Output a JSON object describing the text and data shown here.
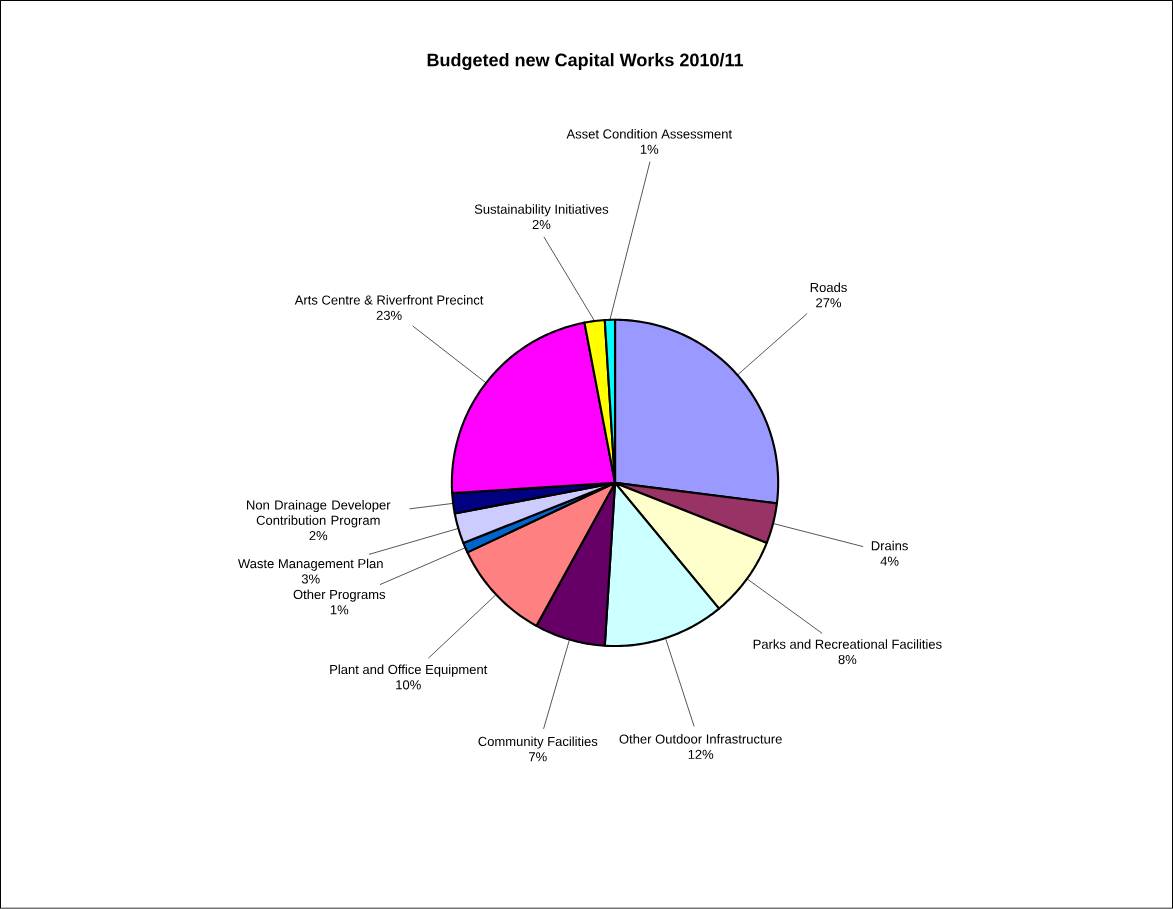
{
  "chart_data": {
    "type": "pie",
    "title": "Budgeted new Capital Works 2010/11",
    "categories": [
      "Roads",
      "Drains",
      "Parks and Recreational Facilities",
      "Other Outdoor Infrastructure",
      "Community Facilities",
      "Plant and Office Equipment",
      "Other Programs",
      "Waste Management Plan",
      "Non Drainage Developer Contribution Program",
      "Arts Centre & Riverfront Precinct",
      "Sustainability Initiatives",
      "Asset Condition Assessment"
    ],
    "values": [
      27,
      4,
      8,
      12,
      7,
      10,
      1,
      3,
      2,
      23,
      2,
      1
    ],
    "value_labels": [
      "27%",
      "4%",
      "8%",
      "12%",
      "7%",
      "10%",
      "1%",
      "3%",
      "2%",
      "23%",
      "2%",
      "1%"
    ],
    "colors": [
      "#9999ff",
      "#993366",
      "#ffffcc",
      "#ccffff",
      "#660066",
      "#ff8080",
      "#0066cc",
      "#ccccff",
      "#000080",
      "#ff00ff",
      "#ffff00",
      "#00ffff"
    ]
  }
}
